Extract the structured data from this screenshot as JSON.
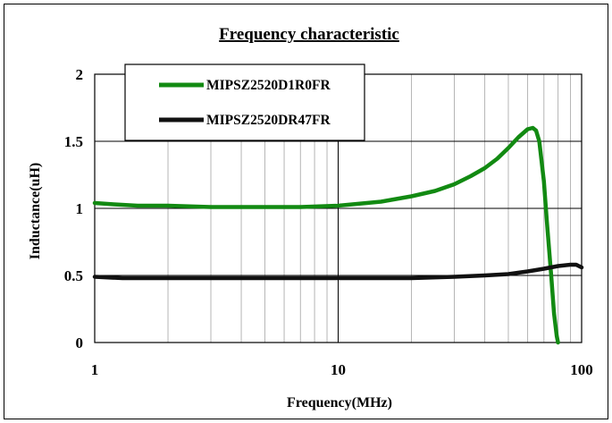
{
  "chart_data": {
    "type": "line",
    "title": "Frequency characteristic",
    "xlabel": "Frequency(MHz)",
    "ylabel": "Inductance(uH)",
    "x_scale": "log",
    "xlim": [
      1,
      100
    ],
    "ylim": [
      0,
      2
    ],
    "x_ticks": [
      "1",
      "10",
      "100"
    ],
    "y_ticks": [
      "0",
      "0.5",
      "1",
      "1.5",
      "2"
    ],
    "grid": true,
    "legend_position": "top-left",
    "series": [
      {
        "name": "MIPSZ2520D1R0FR",
        "color": "#128a12",
        "x": [
          1,
          1.2,
          1.5,
          2,
          3,
          5,
          7,
          10,
          15,
          20,
          25,
          30,
          35,
          40,
          45,
          50,
          55,
          60,
          63,
          65,
          67,
          70,
          72,
          75,
          77,
          79,
          80
        ],
        "y": [
          1.04,
          1.03,
          1.02,
          1.02,
          1.01,
          1.01,
          1.01,
          1.02,
          1.05,
          1.09,
          1.13,
          1.18,
          1.24,
          1.3,
          1.37,
          1.45,
          1.53,
          1.59,
          1.6,
          1.58,
          1.5,
          1.2,
          0.9,
          0.5,
          0.22,
          0.05,
          0.0
        ]
      },
      {
        "name": "MIPSZ2520DR47FR",
        "color": "#111111",
        "x": [
          1,
          1.3,
          2,
          3,
          5,
          10,
          20,
          30,
          40,
          50,
          60,
          70,
          80,
          90,
          95,
          100
        ],
        "y": [
          0.49,
          0.48,
          0.48,
          0.48,
          0.48,
          0.48,
          0.48,
          0.49,
          0.5,
          0.51,
          0.53,
          0.55,
          0.57,
          0.58,
          0.58,
          0.56
        ]
      }
    ]
  }
}
